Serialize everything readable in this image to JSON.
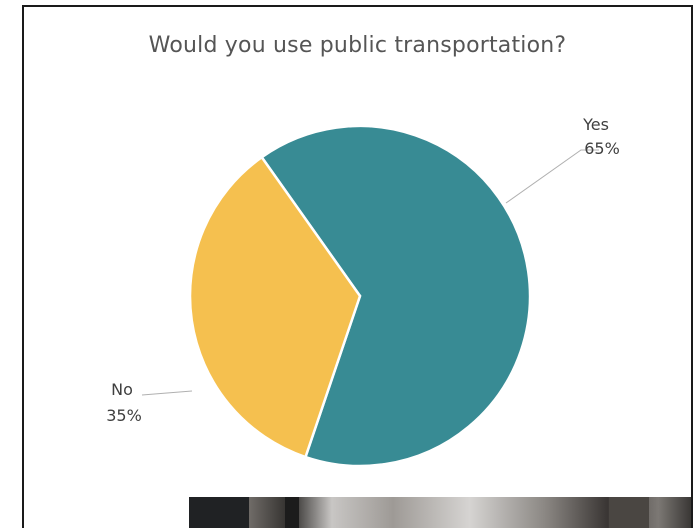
{
  "chart_data": {
    "type": "pie",
    "title": "Would you use public transportation?",
    "slices": [
      {
        "label": "Yes",
        "value": 65,
        "value_label": "65%",
        "color": "#388b94"
      },
      {
        "label": "No",
        "value": 35,
        "value_label": "35%",
        "color": "#f5c04f"
      }
    ],
    "start_angle_deg": -35.3,
    "legend": "none"
  }
}
